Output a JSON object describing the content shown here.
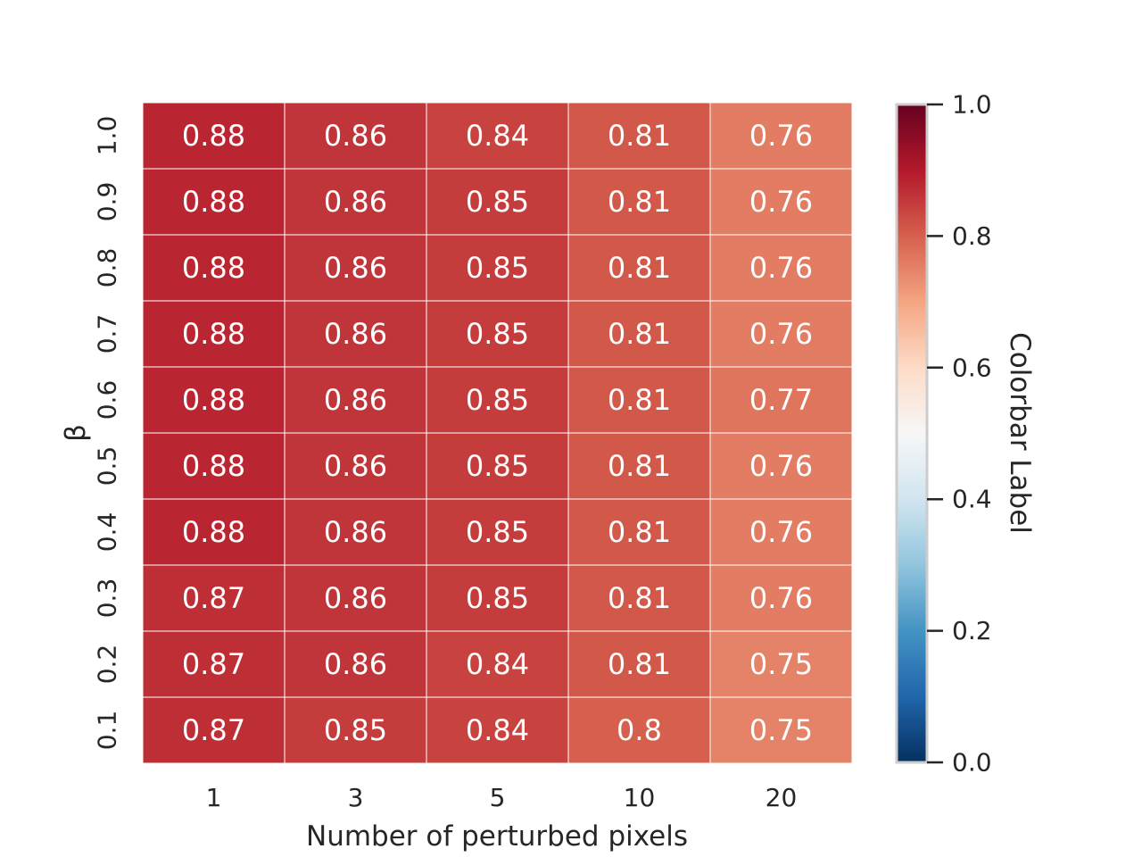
{
  "chart_data": {
    "type": "heatmap",
    "title": "",
    "xlabel": "Number of perturbed pixels",
    "ylabel": "β",
    "x_categories": [
      "1",
      "3",
      "5",
      "10",
      "20"
    ],
    "y_categories": [
      "1.0",
      "0.9",
      "0.8",
      "0.7",
      "0.6",
      "0.5",
      "0.4",
      "0.3",
      "0.2",
      "0.1"
    ],
    "values": [
      [
        0.88,
        0.86,
        0.84,
        0.81,
        0.76
      ],
      [
        0.88,
        0.86,
        0.85,
        0.81,
        0.76
      ],
      [
        0.88,
        0.86,
        0.85,
        0.81,
        0.76
      ],
      [
        0.88,
        0.86,
        0.85,
        0.81,
        0.76
      ],
      [
        0.88,
        0.86,
        0.85,
        0.81,
        0.77
      ],
      [
        0.88,
        0.86,
        0.85,
        0.81,
        0.76
      ],
      [
        0.88,
        0.86,
        0.85,
        0.81,
        0.76
      ],
      [
        0.87,
        0.86,
        0.85,
        0.81,
        0.76
      ],
      [
        0.87,
        0.86,
        0.84,
        0.81,
        0.75
      ],
      [
        0.87,
        0.85,
        0.84,
        0.8,
        0.75
      ]
    ],
    "annotations": [
      [
        "0.88",
        "0.86",
        "0.84",
        "0.81",
        "0.76"
      ],
      [
        "0.88",
        "0.86",
        "0.85",
        "0.81",
        "0.76"
      ],
      [
        "0.88",
        "0.86",
        "0.85",
        "0.81",
        "0.76"
      ],
      [
        "0.88",
        "0.86",
        "0.85",
        "0.81",
        "0.76"
      ],
      [
        "0.88",
        "0.86",
        "0.85",
        "0.81",
        "0.77"
      ],
      [
        "0.88",
        "0.86",
        "0.85",
        "0.81",
        "0.76"
      ],
      [
        "0.88",
        "0.86",
        "0.85",
        "0.81",
        "0.76"
      ],
      [
        "0.87",
        "0.86",
        "0.85",
        "0.81",
        "0.76"
      ],
      [
        "0.87",
        "0.86",
        "0.84",
        "0.81",
        "0.75"
      ],
      [
        "0.87",
        "0.85",
        "0.84",
        "0.8",
        "0.75"
      ]
    ],
    "colormap": "RdBu_r",
    "vmin": 0.0,
    "vmax": 1.0,
    "colorbar": {
      "label": "Colorbar Label",
      "ticks": [
        "0.0",
        "0.2",
        "0.4",
        "0.6",
        "0.8",
        "1.0"
      ],
      "tick_values": [
        0.0,
        0.2,
        0.4,
        0.6,
        0.8,
        1.0
      ]
    },
    "grid": false
  }
}
